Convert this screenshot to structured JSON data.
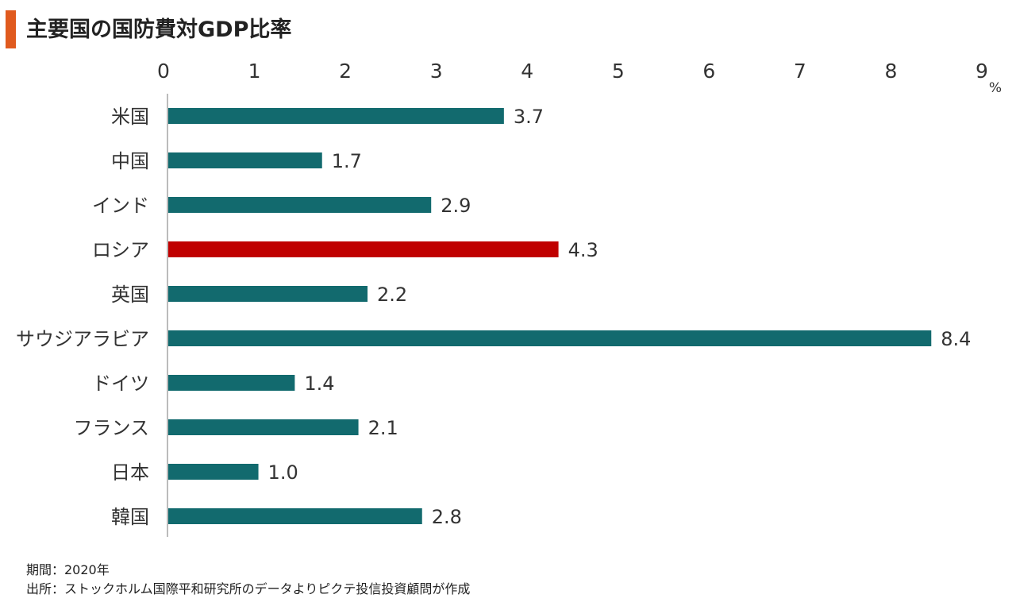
{
  "title": "主要国の国防費対GDP比率",
  "colors": {
    "title_bar": "#e05a1e",
    "bar_default": "#126a6e",
    "bar_highlight": "#c00000",
    "axis": "#bbbbbb"
  },
  "chart_data": {
    "type": "bar",
    "orientation": "horizontal",
    "title": "主要国の国防費対GDP比率",
    "unit": "%",
    "xlim": [
      0,
      9
    ],
    "xticks": [
      "0",
      "1",
      "2",
      "3",
      "4",
      "5",
      "6",
      "7",
      "8",
      "9"
    ],
    "categories": [
      "米国",
      "中国",
      "インド",
      "ロシア",
      "英国",
      "サウジアラビア",
      "ドイツ",
      "フランス",
      "日本",
      "韓国"
    ],
    "values": [
      3.7,
      1.7,
      2.9,
      4.3,
      2.2,
      8.4,
      1.4,
      2.1,
      1.0,
      2.8
    ],
    "value_labels": [
      "3.7",
      "1.7",
      "2.9",
      "4.3",
      "2.2",
      "8.4",
      "1.4",
      "2.1",
      "1.0",
      "2.8"
    ],
    "highlight": "ロシア",
    "grid": false,
    "tick_position": "top"
  },
  "notes": {
    "period": "期間：2020年",
    "source": "出所：ストックホルム国際平和研究所のデータよりピクテ投信投資顧問が作成"
  }
}
